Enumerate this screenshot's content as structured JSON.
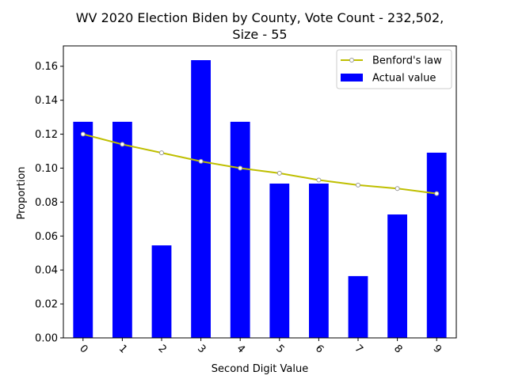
{
  "chart_data": {
    "type": "bar",
    "title_line1": "WV 2020 Election Biden by County,  Vote Count - 232,502,",
    "title_line2": "Size - 55",
    "xlabel": "Second Digit Value",
    "ylabel": "Proportion",
    "categories": [
      "0",
      "1",
      "2",
      "3",
      "4",
      "5",
      "6",
      "7",
      "8",
      "9"
    ],
    "ylim": [
      0,
      0.172
    ],
    "yticks": [
      0.0,
      0.02,
      0.04,
      0.06,
      0.08,
      0.1,
      0.12,
      0.14,
      0.16
    ],
    "ytick_labels": [
      "0.00",
      "0.02",
      "0.04",
      "0.06",
      "0.08",
      "0.10",
      "0.12",
      "0.14",
      "0.16"
    ],
    "grid": false,
    "legend_position": "top-right",
    "series": [
      {
        "name": "Benford's law",
        "kind": "line",
        "color": "#bfbf00",
        "marker_color": "#999999",
        "values": [
          0.12,
          0.114,
          0.109,
          0.104,
          0.1,
          0.097,
          0.093,
          0.09,
          0.088,
          0.085
        ]
      },
      {
        "name": "Actual value",
        "kind": "bar",
        "color": "#0000ff",
        "values": [
          0.1273,
          0.1273,
          0.0545,
          0.1636,
          0.1273,
          0.0909,
          0.0909,
          0.0364,
          0.0727,
          0.1091
        ]
      }
    ]
  }
}
